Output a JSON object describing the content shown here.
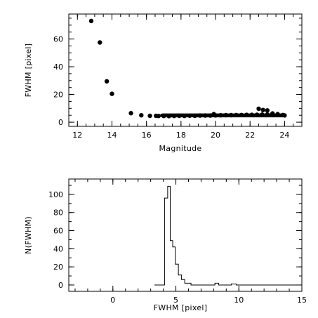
{
  "chart_data": [
    {
      "type": "scatter",
      "xlabel": "Magnitude",
      "ylabel": "FWHM [pixel]",
      "xlim": [
        11.5,
        25
      ],
      "ylim": [
        -3,
        78
      ],
      "xticks": [
        "12",
        "14",
        "16",
        "18",
        "20",
        "22",
        "24"
      ],
      "yticks": [
        "0",
        "20",
        "40",
        "60"
      ],
      "grid": false,
      "series": [
        {
          "points": [
            [
              12.8,
              73
            ],
            [
              13.3,
              57.5
            ],
            [
              13.7,
              29.5
            ],
            [
              14.0,
              20.5
            ],
            [
              15.1,
              6.5
            ],
            [
              15.7,
              5.0
            ],
            [
              16.2,
              4.6
            ],
            [
              16.55,
              4.6
            ],
            [
              16.7,
              4.5
            ],
            [
              17.0,
              4.5
            ],
            [
              17.3,
              4.4
            ],
            [
              17.6,
              4.5
            ],
            [
              17.9,
              4.6
            ],
            [
              18.2,
              4.5
            ],
            [
              18.5,
              4.7
            ],
            [
              18.8,
              4.6
            ],
            [
              19.1,
              4.8
            ],
            [
              19.4,
              4.8
            ],
            [
              19.7,
              4.8
            ],
            [
              19.9,
              5.8
            ],
            [
              20.0,
              4.9
            ],
            [
              20.3,
              5.0
            ],
            [
              20.6,
              5.1
            ],
            [
              20.9,
              5.1
            ],
            [
              21.2,
              5.2
            ],
            [
              21.5,
              5.2
            ],
            [
              21.8,
              5.3
            ],
            [
              22.1,
              5.3
            ],
            [
              22.4,
              5.4
            ],
            [
              22.5,
              9.7
            ],
            [
              22.75,
              8.8
            ],
            [
              23.0,
              8.5
            ],
            [
              22.7,
              5.5
            ],
            [
              23.0,
              5.6
            ],
            [
              23.3,
              6.3
            ],
            [
              23.6,
              5.8
            ],
            [
              23.9,
              5.2
            ],
            [
              24.0,
              4.9
            ]
          ],
          "band": {
            "x_from": 16.8,
            "x_to": 24.0,
            "y_center": 4.9,
            "y_half_width": 0.9
          }
        }
      ]
    },
    {
      "type": "histogram",
      "xlabel": "FWHM [pixel]",
      "ylabel": "N(FWHM)",
      "xlim": [
        -3.5,
        15
      ],
      "ylim": [
        -7,
        117
      ],
      "xticks": [
        "0",
        "5",
        "10",
        "15"
      ],
      "yticks": [
        "0",
        "20",
        "40",
        "60",
        "80",
        "100"
      ],
      "grid": false,
      "bins": [
        [
          3.3,
          4.1,
          0
        ],
        [
          4.1,
          4.35,
          96
        ],
        [
          4.35,
          4.55,
          109
        ],
        [
          4.55,
          4.75,
          49
        ],
        [
          4.75,
          4.95,
          42
        ],
        [
          4.95,
          5.2,
          23
        ],
        [
          5.2,
          5.45,
          11
        ],
        [
          5.45,
          5.7,
          6
        ],
        [
          5.7,
          6.2,
          2
        ],
        [
          6.2,
          8.1,
          0
        ],
        [
          8.1,
          8.4,
          2
        ],
        [
          8.4,
          9.4,
          0
        ],
        [
          9.4,
          9.8,
          1
        ],
        [
          9.8,
          15.0,
          0
        ]
      ]
    }
  ]
}
